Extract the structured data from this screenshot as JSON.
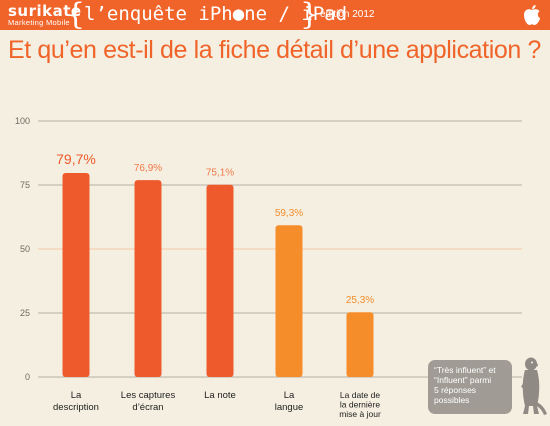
{
  "header": {
    "brand_name": "surikate",
    "brand_sub": "Marketing Mobile",
    "brace_left": "{",
    "brace_right": "}",
    "survey_title": "l’enquête iPh●ne / iPad",
    "edition": "édition 2012",
    "logo_icon": "apple-icon"
  },
  "page": {
    "title": "Et qu’en est-il de la fiche détail d’une application ?"
  },
  "note": {
    "line1": "“Très influent” et",
    "line2": "“Influent” parmi",
    "line3": "5 réponses",
    "line4": "possibles",
    "mascot_icon": "meerkat-icon"
  },
  "colors": {
    "accent": "#f0642a",
    "bar_primary": "#ee5a2b",
    "bar_secondary": "#f58d2a",
    "background": "#f4efe1",
    "gridline": "#b9b2a6",
    "gridline_highlight": "#f5c9a6"
  },
  "chart_data": {
    "type": "bar",
    "categories": [
      [
        "La",
        "description"
      ],
      [
        "Les captures",
        "d’écran"
      ],
      [
        "La note"
      ],
      [
        "La",
        "langue"
      ],
      [
        "La date de",
        "la dernière",
        "mise à jour"
      ]
    ],
    "values": [
      79.7,
      76.9,
      75.1,
      59.3,
      25.3
    ],
    "value_labels": [
      "79,7%",
      "76,9%",
      "75,1%",
      "59,3%",
      "25,3%"
    ],
    "bar_colors": [
      "#ee5a2b",
      "#ee5a2b",
      "#ee5a2b",
      "#f58d2a",
      "#f58d2a"
    ],
    "label_colors": [
      "#ee5a2b",
      "#f2794a",
      "#f2794a",
      "#f58d2a",
      "#f58d2a"
    ],
    "ylim": [
      0,
      100
    ],
    "yticks": [
      0,
      25,
      50,
      75,
      100
    ],
    "ytick_labels": [
      "0",
      "25",
      "50",
      "75",
      "100"
    ],
    "grid": true,
    "title": "",
    "xlabel": "",
    "ylabel": ""
  }
}
